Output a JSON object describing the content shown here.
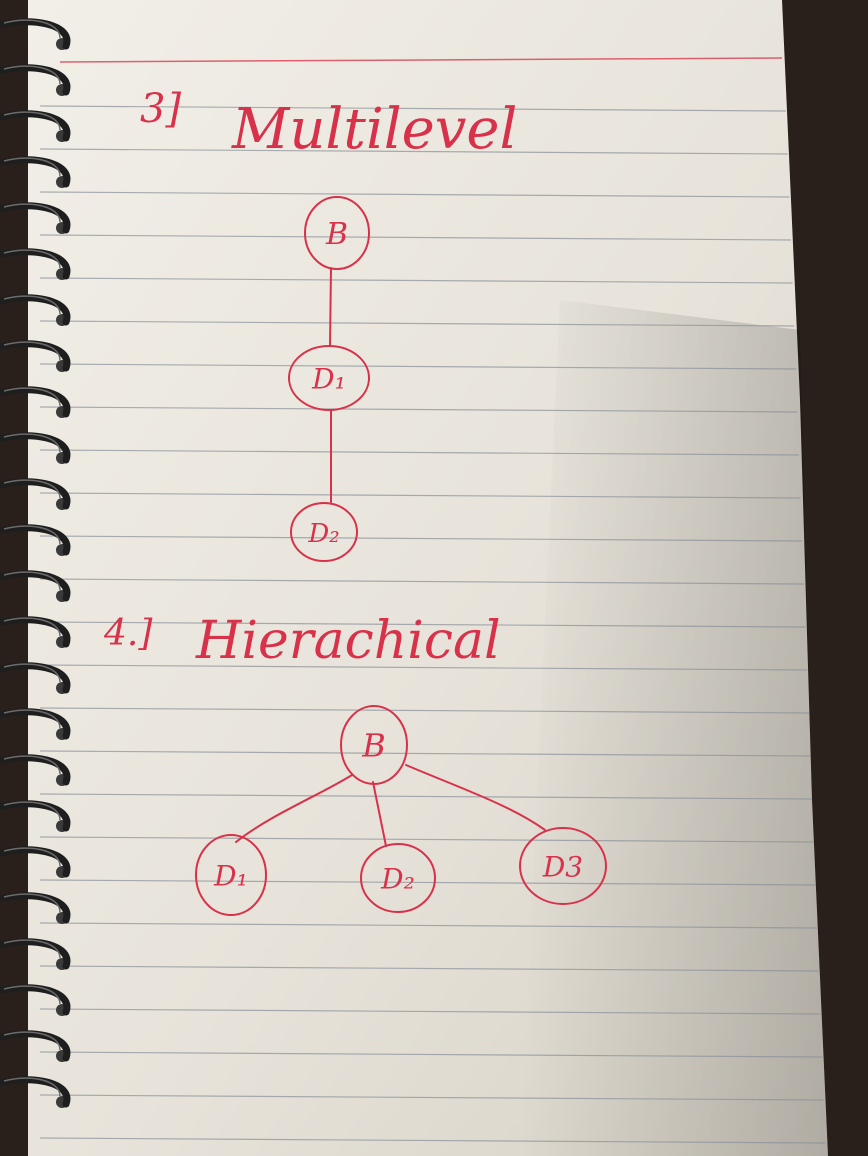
{
  "colors": {
    "ink": "#d8324a",
    "paper": "#e9e5dc",
    "rule": "#8a8f99",
    "margin_line": "#d8324a",
    "desk": "#2a201b"
  },
  "sections": {
    "multilevel": {
      "number": "3]",
      "title": "Multilevel",
      "nodes": [
        {
          "label": "B"
        },
        {
          "label": "D₁"
        },
        {
          "label": "D₂"
        }
      ]
    },
    "hierarchical": {
      "number": "4.]",
      "title": "Hierachical",
      "nodes": [
        {
          "label": "B"
        },
        {
          "label": "D₁"
        },
        {
          "label": "D₂"
        },
        {
          "label": "D3"
        }
      ]
    }
  }
}
